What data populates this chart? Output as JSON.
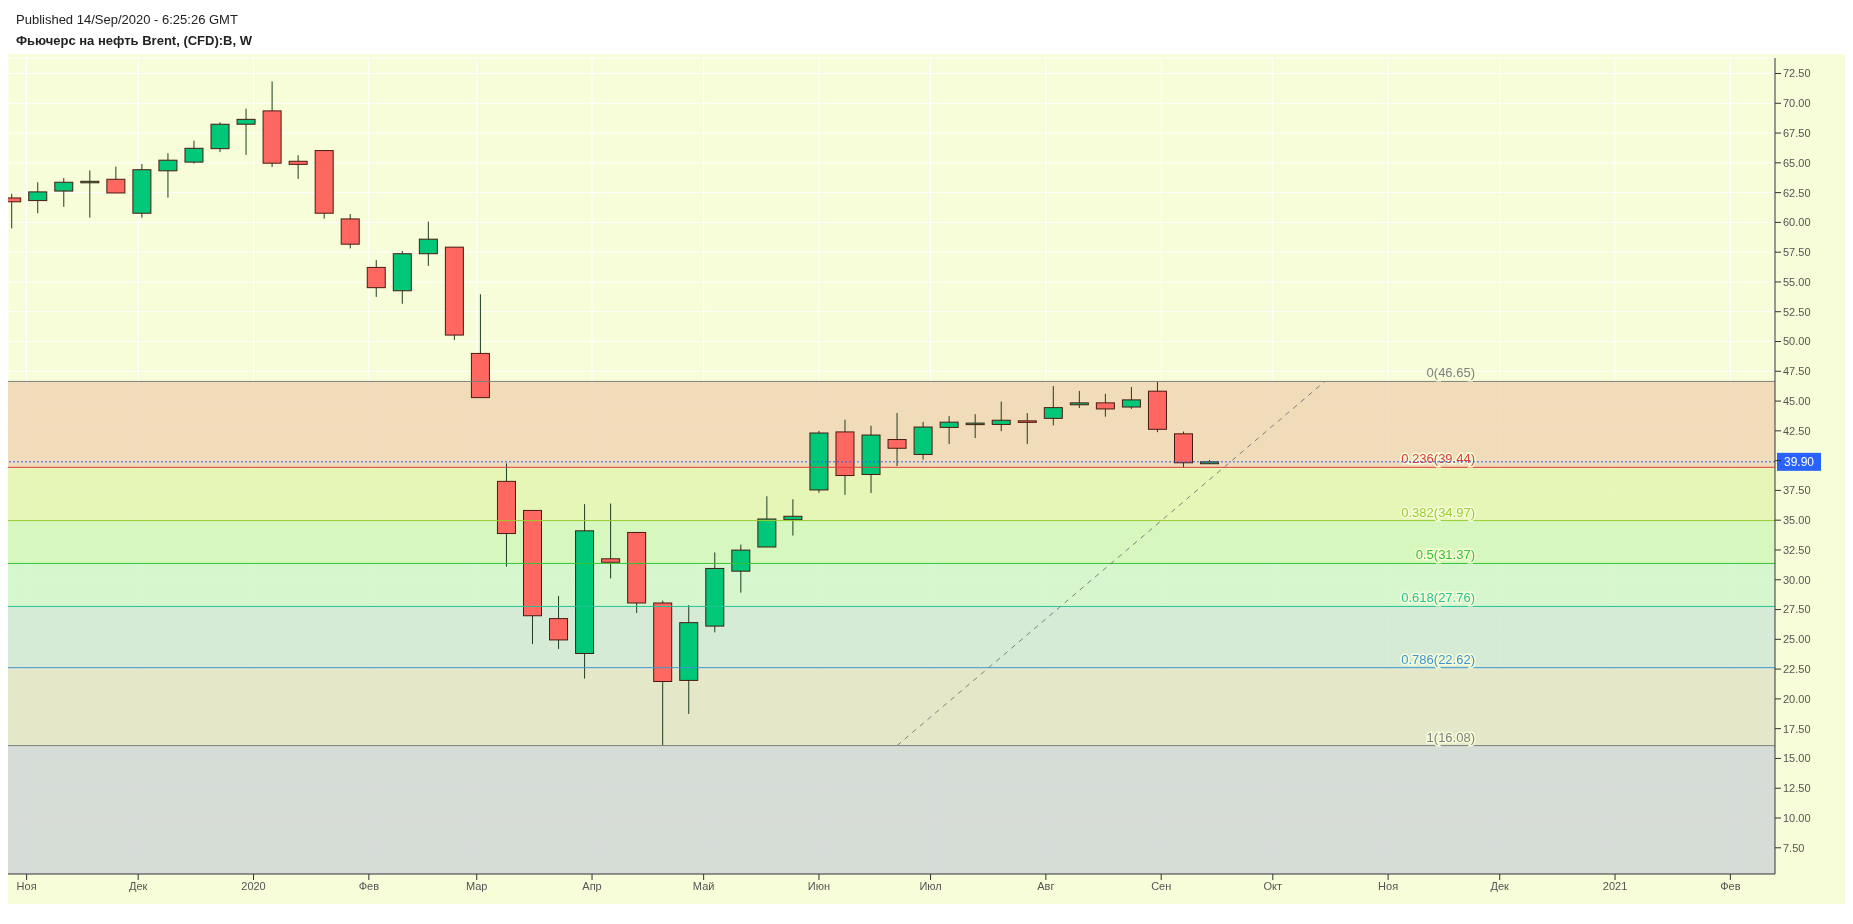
{
  "chart_data": {
    "type": "candlestick",
    "title": "Фьючерс на нефть Brent, (CFD):B, W",
    "annotations": [
      "Published 14/Sep/2020 - 6:25:26 GMT"
    ],
    "x": [
      "2019-10-28",
      "2019-11-04",
      "2019-11-11",
      "2019-11-18",
      "2019-11-25",
      "2019-12-02",
      "2019-12-09",
      "2019-12-16",
      "2019-12-23",
      "2019-12-30",
      "2020-01-06",
      "2020-01-13",
      "2020-01-20",
      "2020-01-27",
      "2020-02-03",
      "2020-02-10",
      "2020-02-17",
      "2020-02-24",
      "2020-03-02",
      "2020-03-09",
      "2020-03-16",
      "2020-03-23",
      "2020-03-30",
      "2020-04-06",
      "2020-04-13",
      "2020-04-20",
      "2020-04-27",
      "2020-05-04",
      "2020-05-11",
      "2020-05-18",
      "2020-05-25",
      "2020-06-01",
      "2020-06-08",
      "2020-06-15",
      "2020-06-22",
      "2020-06-29",
      "2020-07-06",
      "2020-07-13",
      "2020-07-20",
      "2020-07-27",
      "2020-08-03",
      "2020-08-10",
      "2020-08-17",
      "2020-08-24",
      "2020-08-31",
      "2020-09-07",
      "2020-09-14"
    ],
    "ohlc": [
      [
        62.05,
        62.4,
        59.5,
        61.73
      ],
      [
        61.83,
        63.37,
        60.77,
        62.56
      ],
      [
        62.63,
        63.72,
        61.31,
        63.37
      ],
      [
        63.4,
        64.36,
        60.4,
        63.45
      ],
      [
        63.62,
        64.68,
        62.47,
        62.47
      ],
      [
        60.77,
        64.9,
        60.4,
        64.42
      ],
      [
        64.33,
        65.8,
        62.08,
        65.22
      ],
      [
        65.06,
        66.86,
        64.94,
        66.22
      ],
      [
        66.19,
        68.4,
        65.9,
        68.24
      ],
      [
        68.24,
        69.55,
        65.67,
        68.65
      ],
      [
        69.36,
        71.83,
        64.65,
        64.97
      ],
      [
        65.13,
        65.64,
        63.65,
        64.87
      ],
      [
        66.03,
        66.03,
        60.32,
        60.77
      ],
      [
        60.29,
        60.7,
        57.82,
        58.17
      ],
      [
        56.22,
        56.83,
        53.75,
        54.52
      ],
      [
        54.26,
        57.6,
        53.17,
        57.37
      ],
      [
        57.37,
        60.06,
        56.35,
        58.59
      ],
      [
        57.92,
        57.92,
        50.13,
        50.54
      ],
      [
        49.0,
        53.97,
        45.29,
        45.29
      ],
      [
        38.26,
        39.77,
        31.1,
        33.88
      ],
      [
        35.82,
        35.82,
        24.6,
        26.98
      ],
      [
        26.74,
        28.63,
        24.19,
        24.95
      ],
      [
        23.81,
        36.35,
        21.7,
        34.11
      ],
      [
        31.76,
        36.4,
        30.11,
        31.47
      ],
      [
        33.97,
        33.97,
        27.21,
        28.05
      ],
      [
        28.05,
        28.25,
        16.08,
        21.46
      ],
      [
        21.55,
        27.88,
        18.74,
        26.4
      ],
      [
        26.11,
        32.29,
        25.58,
        30.95
      ],
      [
        30.72,
        32.95,
        28.92,
        32.49
      ],
      [
        32.75,
        37.01,
        32.75,
        35.1
      ],
      [
        35.04,
        36.75,
        33.71,
        35.33
      ],
      [
        37.54,
        42.5,
        37.3,
        42.32
      ],
      [
        42.41,
        43.43,
        37.13,
        38.75
      ],
      [
        38.84,
        42.93,
        37.28,
        42.15
      ],
      [
        41.77,
        44.0,
        39.55,
        41.04
      ],
      [
        40.52,
        43.26,
        40.09,
        42.82
      ],
      [
        42.79,
        43.74,
        41.39,
        43.23
      ],
      [
        43.1,
        43.9,
        41.9,
        43.15
      ],
      [
        43.04,
        44.96,
        42.47,
        43.39
      ],
      [
        43.34,
        43.99,
        41.39,
        43.28
      ],
      [
        43.55,
        46.26,
        42.96,
        44.45
      ],
      [
        44.69,
        45.85,
        44.42,
        44.85
      ],
      [
        44.85,
        45.61,
        43.69,
        44.34
      ],
      [
        44.5,
        46.18,
        44.34,
        45.1
      ],
      [
        45.83,
        46.65,
        42.39,
        42.63
      ],
      [
        42.25,
        42.44,
        39.41,
        39.82
      ],
      [
        39.74,
        40.06,
        39.74,
        39.9
      ]
    ],
    "colors": [
      "#ff6860",
      "#00c878",
      "#00c878",
      "#00c878",
      "#ff6860",
      "#00c878",
      "#00c878",
      "#00c878",
      "#00c878",
      "#00c878",
      "#ff6860",
      "#ff6860",
      "#ff6860",
      "#ff6860",
      "#ff6860",
      "#00c878",
      "#00c878",
      "#ff6860",
      "#ff6860",
      "#ff6860",
      "#ff6860",
      "#ff6860",
      "#00c878",
      "#ff6860",
      "#ff6860",
      "#ff6860",
      "#00c878",
      "#00c878",
      "#00c878",
      "#00c878",
      "#00c878",
      "#00c878",
      "#ff6860",
      "#00c878",
      "#ff6860",
      "#00c878",
      "#00c878",
      "#00c878",
      "#00c878",
      "#ff6860",
      "#00c878",
      "#00c878",
      "#ff6860",
      "#00c878",
      "#ff6860",
      "#ff6860",
      "#00c878"
    ],
    "series": [
      {
        "type": "line",
        "x": [
          "2020-06-22",
          "2020-10-15"
        ],
        "values": [
          16.08,
          46.65
        ],
        "color": "#808080",
        "line_style": "dashed"
      }
    ],
    "xlim": [
      "2019-10-27",
      "2021-02-13"
    ],
    "xticks": [
      {
        "value": "2019-11-01",
        "label": "Ноя"
      },
      {
        "value": "2019-12-01",
        "label": "Дек"
      },
      {
        "value": "2020-01-01",
        "label": "2020"
      },
      {
        "value": "2020-02-01",
        "label": "Фев"
      },
      {
        "value": "2020-03-01",
        "label": "Мар"
      },
      {
        "value": "2020-04-01",
        "label": "Апр"
      },
      {
        "value": "2020-05-01",
        "label": "Май"
      },
      {
        "value": "2020-06-01",
        "label": "Июн"
      },
      {
        "value": "2020-07-01",
        "label": "Июл"
      },
      {
        "value": "2020-08-01",
        "label": "Авг"
      },
      {
        "value": "2020-09-01",
        "label": "Сен"
      },
      {
        "value": "2020-10-01",
        "label": "Окт"
      },
      {
        "value": "2020-11-01",
        "label": "Ноя"
      },
      {
        "value": "2020-12-01",
        "label": "Дек"
      },
      {
        "value": "2021-01-01",
        "label": "2021"
      },
      {
        "value": "2021-02-01",
        "label": "Фев"
      }
    ],
    "ylim": [
      5.3,
      73.8
    ],
    "yticks": [
      {
        "value": 7.5,
        "label": "7.50"
      },
      {
        "value": 10,
        "label": "10.00"
      },
      {
        "value": 12.5,
        "label": "12.50"
      },
      {
        "value": 15,
        "label": "15.00"
      },
      {
        "value": 17.5,
        "label": "17.50"
      },
      {
        "value": 20,
        "label": "20.00"
      },
      {
        "value": 22.5,
        "label": "22.50"
      },
      {
        "value": 25,
        "label": "25.00"
      },
      {
        "value": 27.5,
        "label": "27.50"
      },
      {
        "value": 30,
        "label": "30.00"
      },
      {
        "value": 32.5,
        "label": "32.50"
      },
      {
        "value": 35,
        "label": "35.00"
      },
      {
        "value": 37.5,
        "label": "37.50"
      },
      {
        "value": 40,
        "label": null
      },
      {
        "value": 42.5,
        "label": "42.50"
      },
      {
        "value": 45,
        "label": "45.00"
      },
      {
        "value": 47.5,
        "label": "47.50"
      },
      {
        "value": 50,
        "label": "50.00"
      },
      {
        "value": 52.5,
        "label": "52.50"
      },
      {
        "value": 55,
        "label": "55.00"
      },
      {
        "value": 57.5,
        "label": "57.50"
      },
      {
        "value": 60,
        "label": "60.00"
      },
      {
        "value": 62.5,
        "label": "62.50"
      },
      {
        "value": 65,
        "label": "65.00"
      },
      {
        "value": 67.5,
        "label": "67.50"
      },
      {
        "value": 70,
        "label": "70.00"
      },
      {
        "value": 72.5,
        "label": "72.50"
      }
    ],
    "grid": true,
    "bands": [
      {
        "axis": "y",
        "from": 39.44,
        "to": 46.65,
        "color": "#f0d6b4"
      },
      {
        "axis": "y",
        "from": 34.97,
        "to": 39.44,
        "color": "#e3f5b0"
      },
      {
        "axis": "y",
        "from": 31.37,
        "to": 34.97,
        "color": "#d0f6b8"
      },
      {
        "axis": "y",
        "from": 27.76,
        "to": 31.37,
        "color": "#d0f5cc"
      },
      {
        "axis": "y",
        "from": 22.62,
        "to": 27.76,
        "color": "#d0e8d6"
      },
      {
        "axis": "y",
        "from": 16.08,
        "to": 22.62,
        "color": "#e0e4c6"
      },
      {
        "axis": "y",
        "from": 5.3,
        "to": 16.08,
        "color": "#d0d6d6"
      }
    ],
    "ref_lines": [
      {
        "axis": "y",
        "value": 46.65,
        "label": "0(46.65)",
        "color": "#808080",
        "line_style": "solid"
      },
      {
        "axis": "y",
        "value": 39.44,
        "label": "0.236(39.44)",
        "color": "#e03a3a",
        "line_style": "solid"
      },
      {
        "axis": "y",
        "value": 34.97,
        "label": "0.382(34.97)",
        "color": "#9acd32",
        "line_style": "solid"
      },
      {
        "axis": "y",
        "value": 31.37,
        "label": "0.5(31.37)",
        "color": "#33c433",
        "line_style": "solid"
      },
      {
        "axis": "y",
        "value": 27.76,
        "label": "0.618(27.76)",
        "color": "#22c496",
        "line_style": "solid"
      },
      {
        "axis": "y",
        "value": 22.62,
        "label": "0.786(22.62)",
        "color": "#3a96d0",
        "line_style": "solid"
      },
      {
        "axis": "y",
        "value": 16.08,
        "label": "1(16.08)",
        "color": "#808080",
        "line_style": "solid"
      },
      {
        "axis": "y",
        "value": 39.9,
        "label": "39.90",
        "color": "#2962ff",
        "line_style": "dotted"
      }
    ]
  }
}
